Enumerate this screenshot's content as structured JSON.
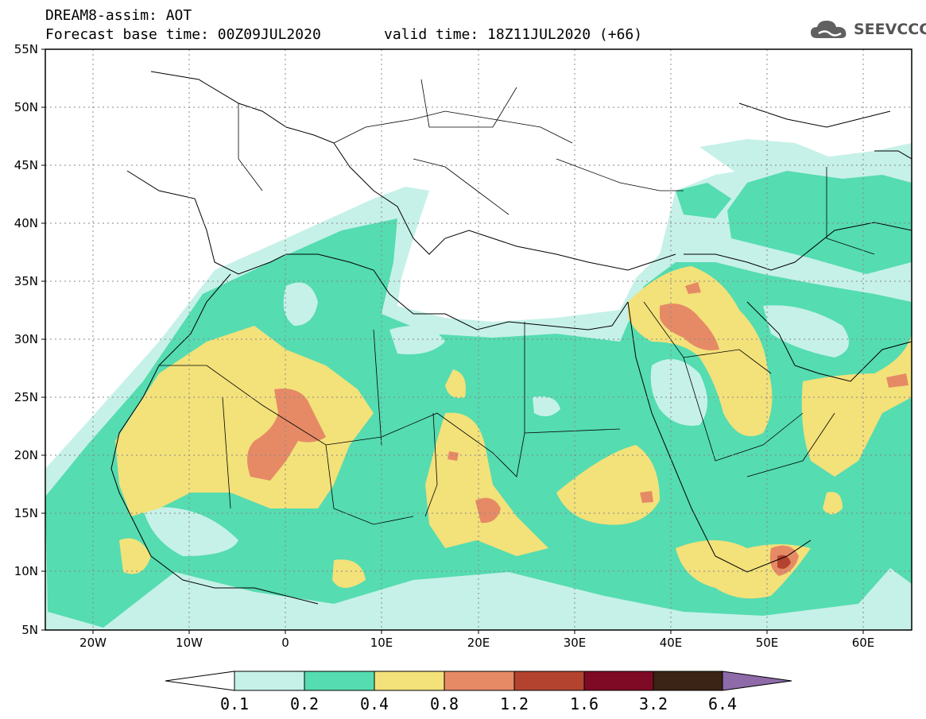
{
  "title": {
    "line1": "DREAM8-assim: AOT",
    "base_time": "Forecast base time: 00Z09JUL2020",
    "valid_time": "valid time: 18Z11JUL2020 (+66)"
  },
  "logo": {
    "text": "SEEVCCC",
    "icon": "cloud-icon"
  },
  "map": {
    "lon_range": [
      -25,
      65
    ],
    "lat_range": [
      5,
      55
    ],
    "lat_ticks": [
      "55N",
      "50N",
      "45N",
      "40N",
      "35N",
      "30N",
      "25N",
      "20N",
      "15N",
      "10N",
      "5N"
    ],
    "lon_ticks": [
      "20W",
      "10W",
      "0",
      "10E",
      "20E",
      "30E",
      "40E",
      "50E",
      "60E"
    ],
    "grid": "dotted"
  },
  "colorbar": {
    "labels": [
      "0.1",
      "0.2",
      "0.4",
      "0.8",
      "1.2",
      "1.6",
      "3.2",
      "6.4"
    ],
    "colors": [
      "#ffffff",
      "#c6f1e8",
      "#55dcb1",
      "#f3e17a",
      "#e68a66",
      "#b3432f",
      "#7e0a26",
      "#3b2415",
      "#8e6aa8"
    ]
  }
}
